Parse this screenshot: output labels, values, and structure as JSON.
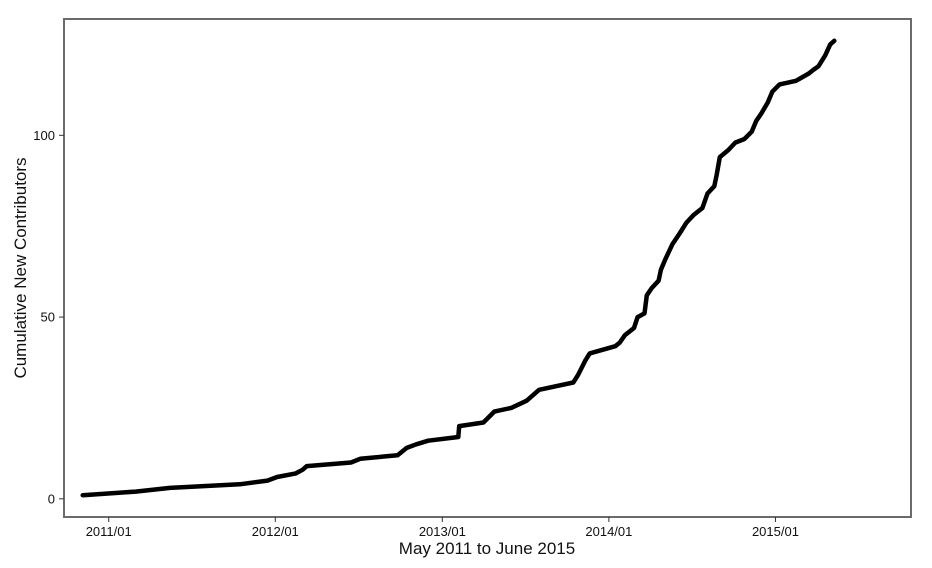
{
  "chart_data": {
    "type": "line",
    "title": "",
    "xlabel": "May 2011 to June 2015",
    "ylabel": "Cumulative New Contributors",
    "x_tick_labels": [
      "2011/01",
      "2012/01",
      "2013/01",
      "2014/01",
      "2015/01"
    ],
    "y_tick_labels": [
      "0",
      "50",
      "100"
    ],
    "y_ticks": [
      0,
      50,
      100
    ],
    "ylim": [
      -5,
      132
    ],
    "xlim": [
      "2010-09-25",
      "2015-10-25"
    ],
    "x_tick_dates": [
      "2011-01-01",
      "2012-01-01",
      "2013-01-01",
      "2014-01-01",
      "2015-01-01"
    ],
    "grid": false,
    "legend": "none",
    "colors": {
      "line": "#000000",
      "frame": "#6b6b6b",
      "background": "#ffffff"
    },
    "series": [
      {
        "points": [
          [
            "2010-11-05",
            1
          ],
          [
            "2011-03-01",
            2
          ],
          [
            "2011-05-15",
            3
          ],
          [
            "2011-10-15",
            4
          ],
          [
            "2011-12-15",
            5
          ],
          [
            "2012-01-05",
            6
          ],
          [
            "2012-02-15",
            7
          ],
          [
            "2012-03-01",
            8
          ],
          [
            "2012-03-10",
            9
          ],
          [
            "2012-06-15",
            10
          ],
          [
            "2012-07-05",
            11
          ],
          [
            "2012-09-25",
            12
          ],
          [
            "2012-10-15",
            14
          ],
          [
            "2012-11-05",
            15
          ],
          [
            "2012-12-01",
            16
          ],
          [
            "2013-02-05",
            17
          ],
          [
            "2013-02-07",
            20
          ],
          [
            "2013-04-01",
            21
          ],
          [
            "2013-04-25",
            24
          ],
          [
            "2013-06-01",
            25
          ],
          [
            "2013-07-05",
            27
          ],
          [
            "2013-08-01",
            30
          ],
          [
            "2013-10-15",
            32
          ],
          [
            "2013-10-25",
            34
          ],
          [
            "2013-11-10",
            38
          ],
          [
            "2013-11-20",
            40
          ],
          [
            "2014-01-15",
            42
          ],
          [
            "2014-01-25",
            43
          ],
          [
            "2014-02-05",
            45
          ],
          [
            "2014-02-25",
            47
          ],
          [
            "2014-03-05",
            50
          ],
          [
            "2014-03-20",
            51
          ],
          [
            "2014-03-25",
            56
          ],
          [
            "2014-04-05",
            58
          ],
          [
            "2014-04-20",
            60
          ],
          [
            "2014-04-25",
            63
          ],
          [
            "2014-05-05",
            66
          ],
          [
            "2014-05-20",
            70
          ],
          [
            "2014-06-05",
            73
          ],
          [
            "2014-06-20",
            76
          ],
          [
            "2014-07-05",
            78
          ],
          [
            "2014-07-25",
            80
          ],
          [
            "2014-08-05",
            84
          ],
          [
            "2014-08-20",
            86
          ],
          [
            "2014-08-25",
            89
          ],
          [
            "2014-09-01",
            94
          ],
          [
            "2014-09-20",
            96
          ],
          [
            "2014-10-05",
            98
          ],
          [
            "2014-10-25",
            99
          ],
          [
            "2014-11-10",
            101
          ],
          [
            "2014-11-20",
            104
          ],
          [
            "2014-12-01",
            106
          ],
          [
            "2014-12-15",
            109
          ],
          [
            "2014-12-25",
            112
          ],
          [
            "2015-01-10",
            114
          ],
          [
            "2015-02-15",
            115
          ],
          [
            "2015-03-15",
            117
          ],
          [
            "2015-03-25",
            118
          ],
          [
            "2015-04-05",
            119
          ],
          [
            "2015-04-20",
            122
          ],
          [
            "2015-05-01",
            125
          ],
          [
            "2015-05-10",
            126
          ]
        ]
      }
    ]
  }
}
